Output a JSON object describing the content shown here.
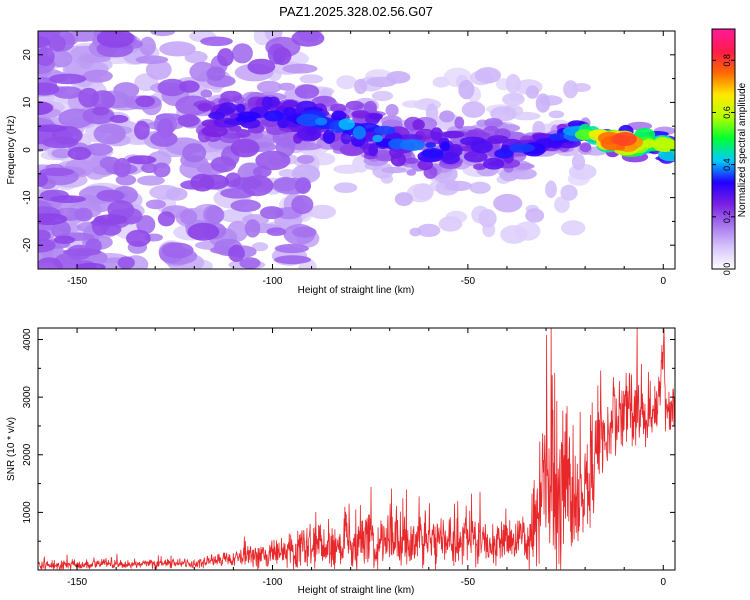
{
  "title": "PAZ1.2025.328.02.56.G07",
  "colors": {
    "snr_line": "#e8272a",
    "axis": "#000000",
    "background": "#ffffff"
  },
  "chart_data": [
    {
      "type": "heatmap",
      "name": "spectrogram",
      "xlabel": "Height of straight line (km)",
      "ylabel": "Frequency (Hz)",
      "xlim": [
        -160,
        3
      ],
      "ylim": [
        -25,
        25
      ],
      "xticks": [
        -150,
        -100,
        -50,
        0
      ],
      "yticks": [
        -20,
        -10,
        0,
        10,
        20
      ],
      "x_tick_labels": [
        "-150",
        "-100",
        "-50",
        "0"
      ],
      "y_tick_labels": [
        "-20",
        "-10",
        "0",
        "10",
        "20"
      ],
      "ridge": [
        {
          "x": -115,
          "f": 6.5,
          "amp": 0.28
        },
        {
          "x": -103,
          "f": 7.5,
          "amp": 0.32
        },
        {
          "x": -90,
          "f": 6.0,
          "amp": 0.36
        },
        {
          "x": -80,
          "f": 5.0,
          "amp": 0.38
        },
        {
          "x": -70,
          "f": 2.5,
          "amp": 0.38
        },
        {
          "x": -60,
          "f": 0.5,
          "amp": 0.33
        },
        {
          "x": -50,
          "f": 0.5,
          "amp": 0.3
        },
        {
          "x": -40,
          "f": 0.0,
          "amp": 0.32
        },
        {
          "x": -30,
          "f": 1.5,
          "amp": 0.34
        },
        {
          "x": -22,
          "f": 3.5,
          "amp": 0.45
        },
        {
          "x": -15,
          "f": 2.5,
          "amp": 0.65
        },
        {
          "x": -10,
          "f": 1.5,
          "amp": 0.85
        },
        {
          "x": -5,
          "f": 2.0,
          "amp": 0.6
        },
        {
          "x": 0,
          "f": 1.0,
          "amp": 0.55
        },
        {
          "x": 3,
          "f": 0.0,
          "amp": 0.5
        }
      ],
      "colorbar": {
        "label": "Normalized spectral amplitude",
        "range": [
          0,
          0.92
        ],
        "ticks": [
          0.0,
          0.2,
          0.4,
          0.6,
          0.8
        ],
        "tick_labels": [
          "0.0",
          "0.2",
          "0.4",
          "0.6",
          "0.8"
        ],
        "colormap": [
          "#ffffff",
          "#d8c7fb",
          "#a878ef",
          "#7a1fe3",
          "#2200ff",
          "#00ccff",
          "#00ff33",
          "#b6ff00",
          "#ffea00",
          "#ff6a00",
          "#ff1a4a",
          "#ff1a9a"
        ]
      }
    },
    {
      "type": "line",
      "name": "snr",
      "xlabel": "Height of straight line (km)",
      "ylabel": "SNR (10 * v/v)",
      "xlim": [
        -160,
        3
      ],
      "ylim": [
        0,
        4200
      ],
      "xticks": [
        -150,
        -100,
        -50,
        0
      ],
      "yticks": [
        1000,
        2000,
        3000,
        4000
      ],
      "x_tick_labels": [
        "-150",
        "-100",
        "-50",
        "0"
      ],
      "y_tick_labels": [
        "1000",
        "2000",
        "3000",
        "4000"
      ],
      "envelope": {
        "x": [
          -160,
          -140,
          -120,
          -110,
          -100,
          -90,
          -80,
          -70,
          -60,
          -50,
          -40,
          -35,
          -31,
          -28,
          -25,
          -20,
          -15,
          -12,
          -8,
          -5,
          -3,
          -1,
          0,
          1,
          3
        ],
        "mean": [
          90,
          100,
          120,
          200,
          280,
          350,
          450,
          520,
          500,
          520,
          480,
          500,
          1100,
          1600,
          1300,
          1350,
          2500,
          2650,
          2900,
          2600,
          2700,
          3000,
          3600,
          2700,
          3100
        ],
        "noise": [
          70,
          60,
          70,
          120,
          220,
          320,
          420,
          450,
          350,
          330,
          300,
          300,
          950,
          1500,
          1100,
          900,
          700,
          550,
          500,
          450,
          350,
          300,
          600,
          350,
          300
        ]
      },
      "series": [
        {
          "name": "SNR",
          "color": "#e8272a"
        }
      ]
    }
  ]
}
